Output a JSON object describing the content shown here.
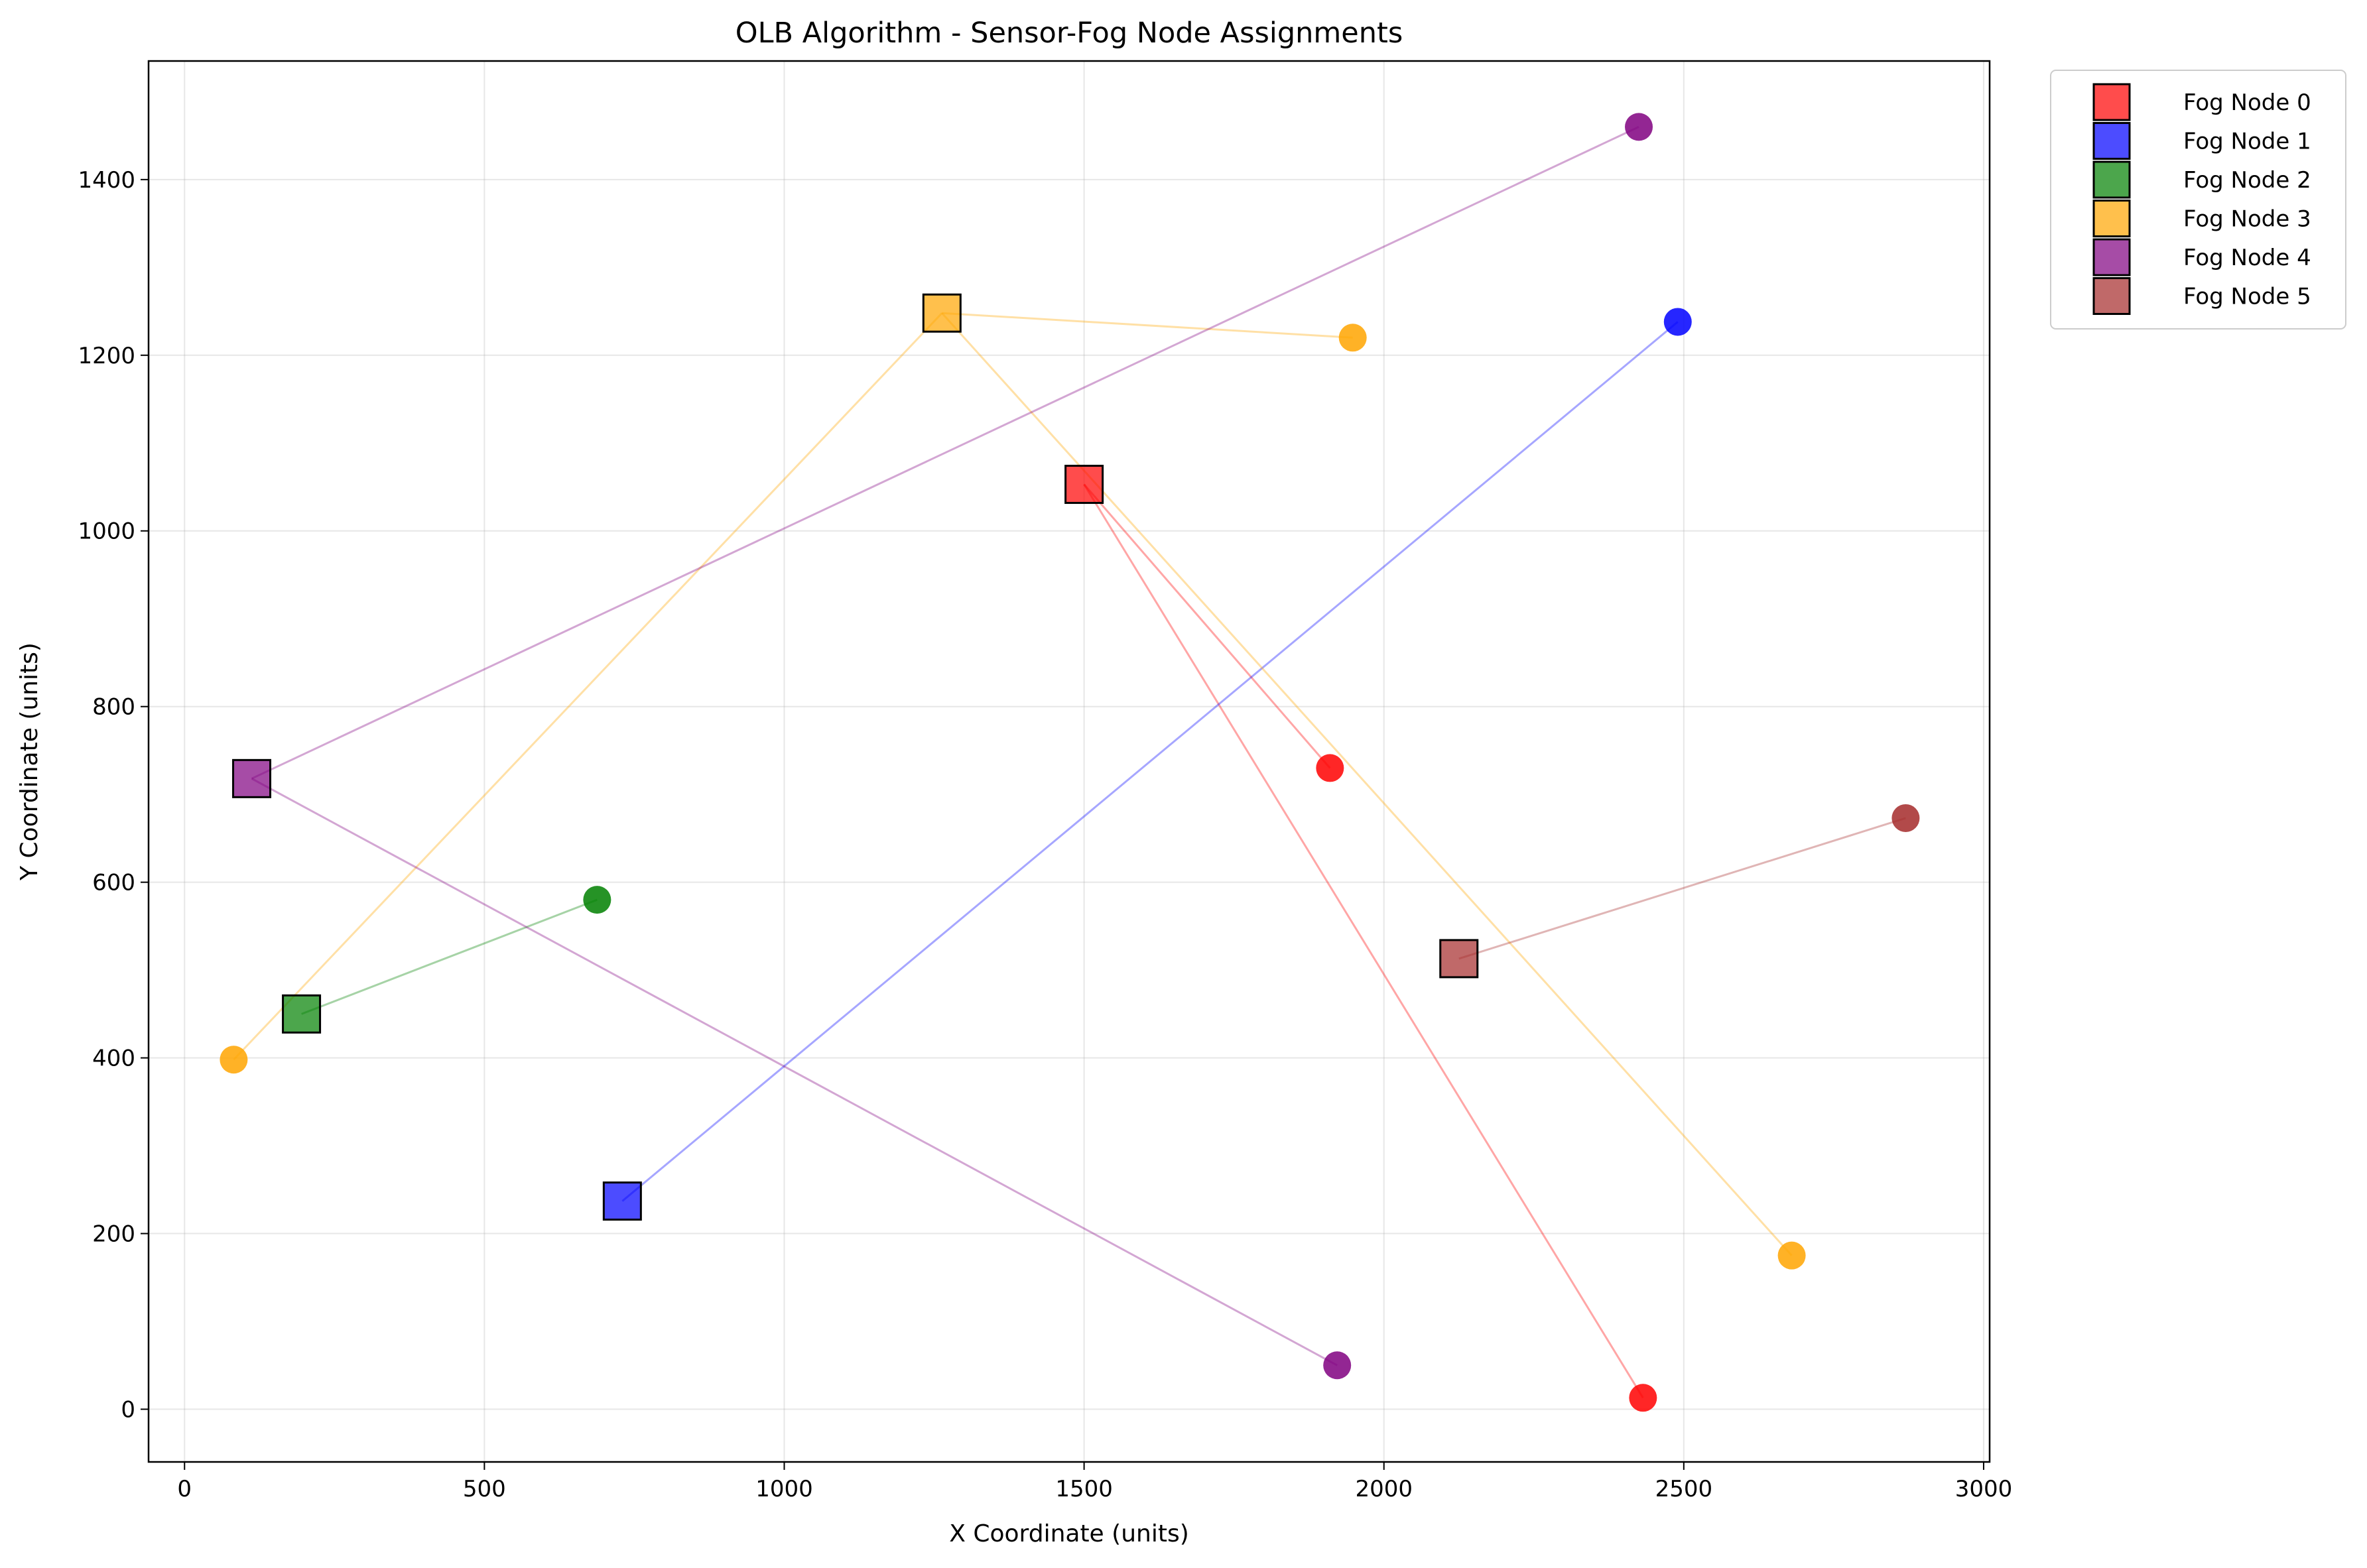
{
  "chart_data": {
    "type": "scatter",
    "title": "OLB Algorithm - Sensor-Fog Node Assignments",
    "xlabel": "X Coordinate (units)",
    "ylabel": "Y Coordinate (units)",
    "xlim": [
      -60,
      3010
    ],
    "ylim": [
      -60,
      1535
    ],
    "x_ticks": [
      0,
      500,
      1000,
      1500,
      2000,
      2500,
      3000
    ],
    "y_ticks": [
      0,
      200,
      400,
      600,
      800,
      1000,
      1200,
      1400
    ],
    "x_tick_labels": [
      "0",
      "500",
      "1000",
      "1500",
      "2000",
      "2500",
      "3000"
    ],
    "y_tick_labels": [
      "0",
      "200",
      "400",
      "600",
      "800",
      "1000",
      "1200",
      "1400"
    ],
    "grid": true,
    "legend_position": "outside-top-right",
    "fog_nodes": [
      {
        "name": "Fog Node 0",
        "color": "#ff0000",
        "x": 1500,
        "y": 1053
      },
      {
        "name": "Fog Node 1",
        "color": "#0000ff",
        "x": 730,
        "y": 237
      },
      {
        "name": "Fog Node 2",
        "color": "#008000",
        "x": 195,
        "y": 450
      },
      {
        "name": "Fog Node 3",
        "color": "#ffa500",
        "x": 1263,
        "y": 1248
      },
      {
        "name": "Fog Node 4",
        "color": "#800080",
        "x": 112,
        "y": 718
      },
      {
        "name": "Fog Node 5",
        "color": "#a52a2a",
        "x": 2125,
        "y": 513
      }
    ],
    "sensors": [
      {
        "fog": 0,
        "x": 1910,
        "y": 730
      },
      {
        "fog": 0,
        "x": 2432,
        "y": 13
      },
      {
        "fog": 1,
        "x": 2490,
        "y": 1238
      },
      {
        "fog": 2,
        "x": 688,
        "y": 580
      },
      {
        "fog": 3,
        "x": 82,
        "y": 398
      },
      {
        "fog": 3,
        "x": 1948,
        "y": 1220
      },
      {
        "fog": 3,
        "x": 2680,
        "y": 175
      },
      {
        "fog": 4,
        "x": 2425,
        "y": 1460
      },
      {
        "fog": 4,
        "x": 1922,
        "y": 50
      },
      {
        "fog": 5,
        "x": 2870,
        "y": 673
      }
    ]
  }
}
